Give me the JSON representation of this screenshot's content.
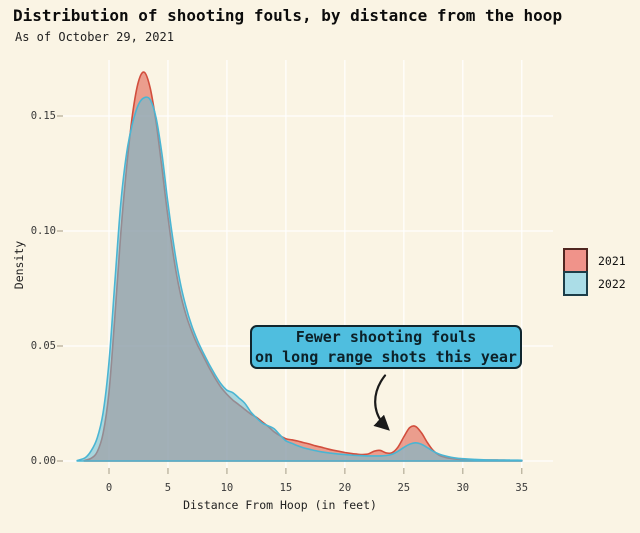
{
  "title": "Distribution of shooting fouls, by distance from the hoop",
  "subtitle": "As of October 29, 2021",
  "annotation": {
    "line1": "Fewer shooting fouls",
    "line2": "on long range shots this year"
  },
  "legend": [
    {
      "label": "2021",
      "fill": "#F0938A",
      "border": "#502620"
    },
    {
      "label": "2022",
      "fill": "#ABDDE7",
      "border": "#1C3D48"
    }
  ],
  "colors": {
    "background": "#FAF4E4",
    "gridline": "rgba(255,255,255,0.9)",
    "tick_mark": "#B3AC97",
    "tick_text": "#3A3A3A",
    "annotation_fill": "#4FBEDF",
    "annotation_border": "#10262E",
    "annotation_text": "#0D2128",
    "arrow": "#1A1A1A"
  },
  "chart_data": {
    "type": "area",
    "title": "Distribution of shooting fouls, by distance from the hoop",
    "subtitle": "As of October 29, 2021",
    "xlabel": "Distance From Hoop (in feet)",
    "ylabel": "Density",
    "xlim": [
      -4,
      37.5
    ],
    "ylim": [
      0,
      0.175
    ],
    "x_ticks": [
      0,
      5,
      10,
      15,
      20,
      25,
      30,
      35
    ],
    "x_tick_labels": [
      "0",
      "5",
      "10",
      "15",
      "20",
      "25",
      "30",
      "35"
    ],
    "y_ticks": [
      0,
      0.05,
      0.1,
      0.15
    ],
    "y_tick_labels": [
      "0.00",
      "0.05",
      "0.10",
      "0.15"
    ],
    "grid": true,
    "legend_position": "right",
    "series": [
      {
        "name": "2021",
        "stroke": "#D24E3D",
        "fill": "rgba(222,85,70,0.55)",
        "points": [
          [
            -2.1,
            0.0002
          ],
          [
            -1.5,
            0.0012
          ],
          [
            -1,
            0.004
          ],
          [
            -0.5,
            0.012
          ],
          [
            0,
            0.03
          ],
          [
            0.5,
            0.063
          ],
          [
            1,
            0.099
          ],
          [
            1.5,
            0.128
          ],
          [
            2,
            0.151
          ],
          [
            2.5,
            0.165
          ],
          [
            3,
            0.169
          ],
          [
            3.5,
            0.162
          ],
          [
            4,
            0.147
          ],
          [
            4.5,
            0.127
          ],
          [
            5,
            0.106
          ],
          [
            5.5,
            0.088
          ],
          [
            6,
            0.074
          ],
          [
            6.5,
            0.064
          ],
          [
            7,
            0.0565
          ],
          [
            7.5,
            0.0505
          ],
          [
            8,
            0.0455
          ],
          [
            8.5,
            0.0405
          ],
          [
            9,
            0.036
          ],
          [
            9.5,
            0.032
          ],
          [
            10,
            0.029
          ],
          [
            10.5,
            0.0265
          ],
          [
            11,
            0.0245
          ],
          [
            11.5,
            0.0225
          ],
          [
            12,
            0.0205
          ],
          [
            12.5,
            0.019
          ],
          [
            13,
            0.017
          ],
          [
            13.5,
            0.015
          ],
          [
            14,
            0.0127
          ],
          [
            14.5,
            0.011
          ],
          [
            15,
            0.0097
          ],
          [
            15.5,
            0.0092
          ],
          [
            16,
            0.0087
          ],
          [
            16.5,
            0.008
          ],
          [
            17,
            0.0074
          ],
          [
            17.5,
            0.0066
          ],
          [
            18,
            0.006
          ],
          [
            18.5,
            0.0053
          ],
          [
            19,
            0.0047
          ],
          [
            19.5,
            0.0042
          ],
          [
            20,
            0.0037
          ],
          [
            20.5,
            0.0033
          ],
          [
            21,
            0.003
          ],
          [
            21.5,
            0.0028
          ],
          [
            22,
            0.0031
          ],
          [
            22.5,
            0.0043
          ],
          [
            23,
            0.0046
          ],
          [
            23.5,
            0.0035
          ],
          [
            24,
            0.0036
          ],
          [
            24.5,
            0.006
          ],
          [
            25,
            0.0105
          ],
          [
            25.5,
            0.0145
          ],
          [
            26,
            0.015
          ],
          [
            26.5,
            0.0122
          ],
          [
            27,
            0.008
          ],
          [
            27.5,
            0.0045
          ],
          [
            28,
            0.0025
          ],
          [
            28.5,
            0.0016
          ],
          [
            29,
            0.0011
          ],
          [
            29.5,
            0.0008
          ],
          [
            30,
            0.0006
          ],
          [
            31,
            0.0005
          ],
          [
            32,
            0.0004
          ],
          [
            33,
            0.0004
          ],
          [
            34,
            0.0003
          ],
          [
            35,
            0.0003
          ]
        ]
      },
      {
        "name": "2022",
        "stroke": "#4AB5D3",
        "fill": "rgba(100,190,215,0.55)",
        "points": [
          [
            -2.7,
            0.0002
          ],
          [
            -2,
            0.0015
          ],
          [
            -1.5,
            0.0045
          ],
          [
            -1,
            0.01
          ],
          [
            -0.5,
            0.021
          ],
          [
            0,
            0.043
          ],
          [
            0.5,
            0.078
          ],
          [
            1,
            0.112
          ],
          [
            1.5,
            0.134
          ],
          [
            2,
            0.147
          ],
          [
            2.5,
            0.155
          ],
          [
            3,
            0.158
          ],
          [
            3.5,
            0.157
          ],
          [
            4,
            0.149
          ],
          [
            4.5,
            0.133
          ],
          [
            5,
            0.112
          ],
          [
            5.5,
            0.0935
          ],
          [
            6,
            0.0785
          ],
          [
            6.5,
            0.0675
          ],
          [
            7,
            0.059
          ],
          [
            7.5,
            0.0525
          ],
          [
            8,
            0.047
          ],
          [
            8.5,
            0.042
          ],
          [
            9,
            0.0375
          ],
          [
            9.5,
            0.0335
          ],
          [
            10,
            0.0308
          ],
          [
            10.5,
            0.0297
          ],
          [
            11,
            0.0275
          ],
          [
            11.5,
            0.0252
          ],
          [
            12,
            0.0215
          ],
          [
            12.5,
            0.0188
          ],
          [
            13,
            0.0165
          ],
          [
            13.5,
            0.0153
          ],
          [
            14,
            0.014
          ],
          [
            14.5,
            0.0113
          ],
          [
            15,
            0.0088
          ],
          [
            15.5,
            0.0077
          ],
          [
            16,
            0.0066
          ],
          [
            16.5,
            0.0057
          ],
          [
            17,
            0.0051
          ],
          [
            17.5,
            0.0045
          ],
          [
            18,
            0.004
          ],
          [
            18.5,
            0.0036
          ],
          [
            19,
            0.0033
          ],
          [
            19.5,
            0.003
          ],
          [
            20,
            0.0028
          ],
          [
            20.5,
            0.0026
          ],
          [
            21,
            0.0024
          ],
          [
            21.5,
            0.0023
          ],
          [
            22,
            0.0022
          ],
          [
            22.5,
            0.0022
          ],
          [
            23,
            0.0022
          ],
          [
            23.5,
            0.0024
          ],
          [
            24,
            0.0029
          ],
          [
            24.5,
            0.0042
          ],
          [
            25,
            0.0059
          ],
          [
            25.5,
            0.0073
          ],
          [
            26,
            0.0079
          ],
          [
            26.5,
            0.0073
          ],
          [
            27,
            0.0058
          ],
          [
            27.5,
            0.0042
          ],
          [
            28,
            0.003
          ],
          [
            28.5,
            0.0022
          ],
          [
            29,
            0.0016
          ],
          [
            29.5,
            0.0012
          ],
          [
            30,
            0.001
          ],
          [
            31,
            0.0007
          ],
          [
            32,
            0.0005
          ],
          [
            33,
            0.0004
          ],
          [
            34,
            0.0004
          ],
          [
            35,
            0.0003
          ]
        ]
      }
    ]
  }
}
